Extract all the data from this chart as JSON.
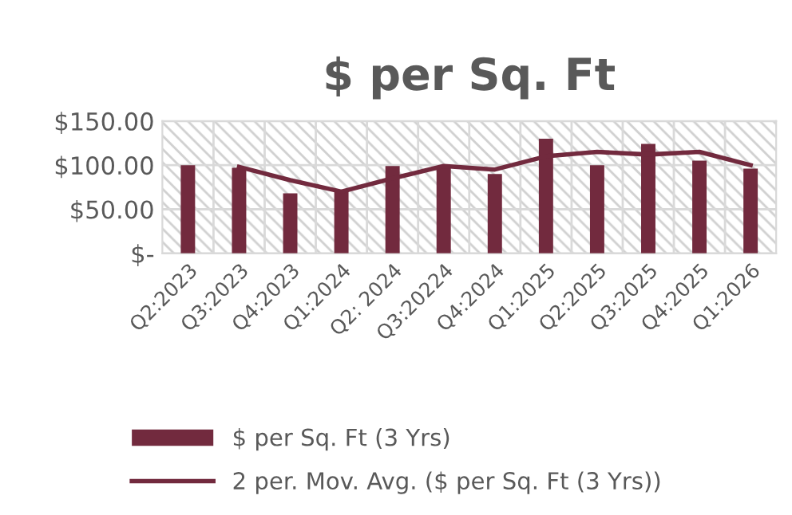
{
  "chart_data": {
    "type": "bar",
    "title": "$ per Sq. Ft",
    "categories": [
      "Q2:2023",
      "Q3:2023",
      "Q4:2023",
      "Q1:2024",
      "Q2: 2024",
      "Q3:20224",
      "Q4:2024",
      "Q1:2025",
      "Q2:2025",
      "Q3:2025",
      "Q4:2025",
      "Q1:2026"
    ],
    "series": [
      {
        "name": "$ per Sq. Ft (3 Yrs)",
        "color": "#722a3e",
        "values": [
          100,
          97,
          68,
          71,
          99,
          99,
          90,
          130,
          100,
          124,
          105,
          96
        ]
      },
      {
        "name": "2 per. Mov. Avg. ($ per Sq. Ft (3 Yrs))",
        "type": "line",
        "color": "#722a3e",
        "values": [
          null,
          98,
          83,
          70,
          85,
          99,
          95,
          110,
          115,
          112,
          115,
          100
        ]
      }
    ],
    "ylim": [
      0,
      150
    ],
    "yticks": [
      {
        "value": 0,
        "label": "$-"
      },
      {
        "value": 50,
        "label": "$50.00"
      },
      {
        "value": 100,
        "label": "$100.00"
      },
      {
        "value": 150,
        "label": "$150.00"
      }
    ],
    "grid": true,
    "legend": "bottom",
    "marker": "none",
    "line_style": "solid"
  }
}
